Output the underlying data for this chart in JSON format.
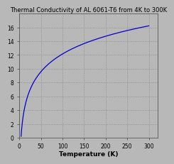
{
  "title": "Thermal Conductivity of AL 6061-T6 from 4K to 300K",
  "xlabel": "Temperature (K)",
  "ylabel": "",
  "xlim": [
    0,
    320
  ],
  "ylim": [
    0,
    180
  ],
  "xticks": [
    0,
    50,
    100,
    150,
    200,
    250,
    300
  ],
  "ytick_labels": [
    "0",
    "2",
    "4",
    "6",
    "8",
    "10",
    "12",
    "14",
    "16"
  ],
  "ytick_vals": [
    0,
    20,
    40,
    60,
    80,
    100,
    120,
    140,
    160
  ],
  "line_color": "#0000cc",
  "background_color": "#b8b8b8",
  "grid_color": "#888888",
  "title_fontsize": 6.0,
  "tick_fontsize": 5.5,
  "label_fontsize": 6.5
}
